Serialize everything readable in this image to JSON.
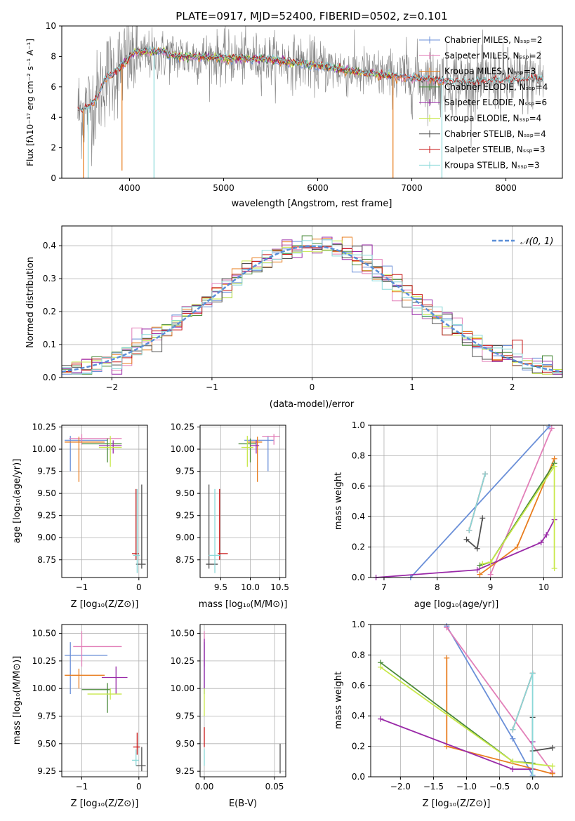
{
  "colors": {
    "chabrier_miles": "#6a8fd8",
    "salpeter_miles": "#e27fb8",
    "kroupa_miles": "#e87d1e",
    "chabrier_elodie": "#4a8a3a",
    "salpeter_elodie": "#9a2aa8",
    "kroupa_elodie": "#c8e84a",
    "chabrier_stelib": "#505050",
    "salpeter_stelib": "#c81818",
    "kroupa_stelib": "#8ad8d8",
    "data": "#7f7f7f",
    "normal": "#5b8fd8"
  },
  "chart_data": [
    {
      "id": "spectrum",
      "type": "line",
      "title": "PLATE=0917, MJD=52400, FIBERID=0502, z=0.101",
      "xlabel": "wavelength [Angstrom, rest frame]",
      "ylabel": "Flux [fλ10⁻¹⁷ erg cm⁻² s⁻¹ A⁻¹]",
      "xlim": [
        3280,
        8600
      ],
      "ylim": [
        0,
        10
      ],
      "xticks": [
        "4000",
        "5000",
        "6000",
        "7000",
        "8000"
      ],
      "yticks": [
        "0",
        "2",
        "4",
        "6",
        "8",
        "10"
      ],
      "legend_position": "top-right",
      "legend": [
        {
          "label": "Chabrier MILES, N_SSP=2",
          "color_key": "chabrier_miles"
        },
        {
          "label": "Salpeter MILES, N_SSP=2",
          "color_key": "salpeter_miles"
        },
        {
          "label": "Kroupa MILES, N_SSP=3",
          "color_key": "kroupa_miles"
        },
        {
          "label": "Chabrier ELODIE, N_SSP=4",
          "color_key": "chabrier_elodie"
        },
        {
          "label": "Salpeter ELODIE, N_SSP=6",
          "color_key": "salpeter_elodie"
        },
        {
          "label": "Kroupa ELODIE, N_SSP=4",
          "color_key": "kroupa_elodie"
        },
        {
          "label": "Chabrier STELIB, N_SSP=4",
          "color_key": "chabrier_stelib"
        },
        {
          "label": "Salpeter STELIB, N_SSP=3",
          "color_key": "salpeter_stelib"
        },
        {
          "label": "Kroupa STELIB, N_SSP=3",
          "color_key": "kroupa_stelib"
        }
      ],
      "continuum_points": [
        [
          3450,
          4.4
        ],
        [
          3550,
          4.6
        ],
        [
          3650,
          5.2
        ],
        [
          3700,
          6.0
        ],
        [
          3750,
          6.6
        ],
        [
          3850,
          7.0
        ],
        [
          3950,
          7.6
        ],
        [
          4050,
          8.0
        ],
        [
          4300,
          8.1
        ],
        [
          4600,
          8.0
        ],
        [
          5000,
          7.9
        ],
        [
          5500,
          7.8
        ],
        [
          6000,
          7.4
        ],
        [
          6500,
          6.9
        ],
        [
          7000,
          6.6
        ],
        [
          7500,
          6.3
        ],
        [
          8000,
          6.4
        ],
        [
          8400,
          6.5
        ]
      ],
      "data_noise_amplitude": 1.2,
      "dropouts": [
        [
          3510,
          0
        ],
        [
          3560,
          0
        ],
        [
          3920,
          0.5
        ],
        [
          4260,
          0
        ],
        [
          6800,
          0
        ],
        [
          7320,
          0
        ]
      ]
    },
    {
      "id": "residuals",
      "type": "histogram",
      "xlabel": "(data-model)/error",
      "ylabel": "Normed distribution",
      "xlim": [
        -2.5,
        2.5
      ],
      "ylim": [
        0,
        0.46
      ],
      "xticks": [
        "−2",
        "−1",
        "0",
        "1",
        "2"
      ],
      "yticks": [
        "0.0",
        "0.1",
        "0.2",
        "0.3",
        "0.4"
      ],
      "grid": true,
      "legend_position": "top-right",
      "normal_label": "𝒩(0, 1)",
      "bin_width": 0.1
    },
    {
      "id": "z-age",
      "type": "errorbar",
      "xlabel": "Z [log₁₀(Z/Z⊙)]",
      "ylabel": "age  [log₁₀(age/yr)]",
      "xlim": [
        -1.35,
        0.15
      ],
      "ylim": [
        8.55,
        10.27
      ],
      "xticks": [
        {
          "v": -1,
          "t": "−1"
        },
        {
          "v": 0,
          "t": "0"
        }
      ],
      "yticks": [
        {
          "v": 8.75,
          "t": "8.75"
        },
        {
          "v": 9.0,
          "t": "9.00"
        },
        {
          "v": 9.25,
          "t": "9.25"
        },
        {
          "v": 9.5,
          "t": "9.50"
        },
        {
          "v": 9.75,
          "t": "9.75"
        },
        {
          "v": 10.0,
          "t": "10.00"
        },
        {
          "v": 10.25,
          "t": "10.25"
        }
      ],
      "points": [
        {
          "c": "chabrier_miles",
          "x": -1.2,
          "y": 10.1,
          "xlo": -1.3,
          "xhi": -0.55,
          "ylo": 9.75,
          "yhi": 10.15
        },
        {
          "c": "salpeter_miles",
          "x": -1.0,
          "y": 10.12,
          "xlo": -1.22,
          "xhi": -0.3,
          "ylo": 10.05,
          "yhi": 10.17
        },
        {
          "c": "kroupa_miles",
          "x": -1.05,
          "y": 10.08,
          "xlo": -1.3,
          "xhi": -0.6,
          "ylo": 9.63,
          "yhi": 10.14
        },
        {
          "c": "chabrier_elodie",
          "x": -0.55,
          "y": 10.06,
          "xlo": -1.0,
          "xhi": -0.3,
          "ylo": 9.85,
          "yhi": 10.12
        },
        {
          "c": "salpeter_elodie",
          "x": -0.45,
          "y": 10.04,
          "xlo": -0.7,
          "xhi": -0.3,
          "ylo": 9.95,
          "yhi": 10.1
        },
        {
          "c": "kroupa_elodie",
          "x": -0.5,
          "y": 10.02,
          "xlo": -0.7,
          "xhi": -0.3,
          "ylo": 9.8,
          "yhi": 10.15
        },
        {
          "c": "chabrier_stelib",
          "x": 0.05,
          "y": 8.7,
          "xlo": -0.05,
          "xhi": 0.12,
          "ylo": 8.65,
          "yhi": 9.6
        },
        {
          "c": "salpeter_stelib",
          "x": -0.05,
          "y": 8.82,
          "xlo": -0.12,
          "xhi": 0.0,
          "ylo": 8.75,
          "yhi": 9.55
        },
        {
          "c": "kroupa_stelib",
          "x": -0.03,
          "y": 8.8,
          "xlo": -0.1,
          "xhi": 0.02,
          "ylo": 8.6,
          "yhi": 9.55
        }
      ]
    },
    {
      "id": "mass-age",
      "type": "errorbar",
      "xlabel": "mass [log₁₀(M/M⊙)]",
      "ylabel": "",
      "xlim": [
        9.15,
        10.6
      ],
      "ylim": [
        8.55,
        10.27
      ],
      "xticks": [
        {
          "v": 9.5,
          "t": "9.5"
        },
        {
          "v": 10.0,
          "t": "10.0"
        },
        {
          "v": 10.5,
          "t": "10.5"
        }
      ],
      "yticks": [
        {
          "v": 8.75,
          "t": "8.75"
        },
        {
          "v": 9.0,
          "t": "9.00"
        },
        {
          "v": 9.25,
          "t": "9.25"
        },
        {
          "v": 9.5,
          "t": "9.50"
        },
        {
          "v": 9.75,
          "t": "9.75"
        },
        {
          "v": 10.0,
          "t": "10.00"
        },
        {
          "v": 10.25,
          "t": "10.25"
        }
      ],
      "points": [
        {
          "c": "chabrier_miles",
          "x": 10.3,
          "y": 10.1,
          "xlo": 9.9,
          "xhi": 10.4,
          "ylo": 9.75,
          "yhi": 10.15
        },
        {
          "c": "salpeter_miles",
          "x": 10.4,
          "y": 10.14,
          "xlo": 10.2,
          "xhi": 10.5,
          "ylo": 10.05,
          "yhi": 10.17
        },
        {
          "c": "kroupa_miles",
          "x": 10.12,
          "y": 10.08,
          "xlo": 9.95,
          "xhi": 10.2,
          "ylo": 9.63,
          "yhi": 10.14
        },
        {
          "c": "chabrier_elodie",
          "x": 10.0,
          "y": 10.06,
          "xlo": 9.8,
          "xhi": 10.1,
          "ylo": 9.85,
          "yhi": 10.12
        },
        {
          "c": "salpeter_elodie",
          "x": 10.1,
          "y": 10.04,
          "xlo": 10.0,
          "xhi": 10.15,
          "ylo": 9.95,
          "yhi": 10.1
        },
        {
          "c": "kroupa_elodie",
          "x": 9.95,
          "y": 10.02,
          "xlo": 9.85,
          "xhi": 10.05,
          "ylo": 9.8,
          "yhi": 10.15
        },
        {
          "c": "chabrier_stelib",
          "x": 9.3,
          "y": 8.7,
          "xlo": 9.25,
          "xhi": 9.45,
          "ylo": 8.65,
          "yhi": 9.6
        },
        {
          "c": "salpeter_stelib",
          "x": 9.48,
          "y": 8.82,
          "xlo": 9.45,
          "xhi": 9.62,
          "ylo": 8.75,
          "yhi": 9.55
        },
        {
          "c": "kroupa_stelib",
          "x": 9.4,
          "y": 8.8,
          "xlo": 9.3,
          "xhi": 9.5,
          "ylo": 8.6,
          "yhi": 9.55
        }
      ]
    },
    {
      "id": "age-weight",
      "type": "line",
      "xlabel": "age  [log₁₀(age/yr)]",
      "ylabel": "mass weight",
      "xlim": [
        6.75,
        10.35
      ],
      "ylim": [
        0,
        1
      ],
      "xticks": [
        {
          "v": 7,
          "t": "7"
        },
        {
          "v": 8,
          "t": "8"
        },
        {
          "v": 9,
          "t": "9"
        },
        {
          "v": 10,
          "t": "10"
        }
      ],
      "yticks": [
        {
          "v": 0,
          "t": "0.0"
        },
        {
          "v": 0.2,
          "t": "0.2"
        },
        {
          "v": 0.4,
          "t": "0.4"
        },
        {
          "v": 0.6,
          "t": "0.6"
        },
        {
          "v": 0.8,
          "t": "0.8"
        },
        {
          "v": 1.0,
          "t": "1.0"
        }
      ],
      "series": [
        {
          "c": "chabrier_miles",
          "x": [
            7.5,
            10.1
          ],
          "y": [
            0.0,
            0.99
          ]
        },
        {
          "c": "salpeter_miles",
          "x": [
            9.0,
            10.15
          ],
          "y": [
            0.02,
            0.98
          ]
        },
        {
          "c": "kroupa_miles",
          "x": [
            8.8,
            9.5,
            10.2
          ],
          "y": [
            0.02,
            0.2,
            0.78
          ]
        },
        {
          "c": "chabrier_elodie",
          "x": [
            8.8,
            9.0,
            10.2
          ],
          "y": [
            0.08,
            0.1,
            0.75
          ]
        },
        {
          "c": "salpeter_elodie",
          "x": [
            6.85,
            8.75,
            9.95,
            10.05,
            10.2
          ],
          "y": [
            0.0,
            0.05,
            0.23,
            0.28,
            0.38
          ]
        },
        {
          "c": "kroupa_elodie",
          "x": [
            8.85,
            9.0,
            10.2,
            10.2
          ],
          "y": [
            0.09,
            0.1,
            0.73,
            0.06
          ]
        },
        {
          "c": "chabrier_stelib",
          "x": [
            8.55,
            8.75,
            8.85
          ],
          "y": [
            0.25,
            0.19,
            0.39
          ]
        },
        {
          "c": "salpeter_stelib",
          "x": [
            8.6,
            8.9
          ],
          "y": [
            0.31,
            0.68
          ]
        },
        {
          "c": "kroupa_stelib",
          "x": [
            8.6,
            8.9
          ],
          "y": [
            0.31,
            0.68
          ]
        }
      ]
    },
    {
      "id": "z-mass",
      "type": "errorbar",
      "xlabel": "Z [log₁₀(Z/Z⊙)]",
      "ylabel": "mass [log₁₀(M/M⊙)]",
      "xlim": [
        -1.35,
        0.15
      ],
      "ylim": [
        9.2,
        10.58
      ],
      "xticks": [
        {
          "v": -1,
          "t": "−1"
        },
        {
          "v": 0,
          "t": "0"
        }
      ],
      "yticks": [
        {
          "v": 9.25,
          "t": "9.25"
        },
        {
          "v": 9.5,
          "t": "9.50"
        },
        {
          "v": 9.75,
          "t": "9.75"
        },
        {
          "v": 10.0,
          "t": "10.00"
        },
        {
          "v": 10.25,
          "t": "10.25"
        },
        {
          "v": 10.5,
          "t": "10.50"
        }
      ],
      "points": [
        {
          "c": "chabrier_miles",
          "x": -1.2,
          "y": 10.3,
          "xlo": -1.3,
          "xhi": -0.55,
          "ylo": 9.95,
          "yhi": 10.42
        },
        {
          "c": "salpeter_miles",
          "x": -1.0,
          "y": 10.38,
          "xlo": -1.15,
          "xhi": -0.3,
          "ylo": 10.2,
          "yhi": 10.52
        },
        {
          "c": "kroupa_miles",
          "x": -1.05,
          "y": 10.12,
          "xlo": -1.3,
          "xhi": -0.6,
          "ylo": 10.0,
          "yhi": 10.18
        },
        {
          "c": "chabrier_elodie",
          "x": -0.55,
          "y": 9.99,
          "xlo": -1.0,
          "xhi": -0.5,
          "ylo": 9.78,
          "yhi": 10.05
        },
        {
          "c": "salpeter_elodie",
          "x": -0.4,
          "y": 10.1,
          "xlo": -0.65,
          "xhi": -0.2,
          "ylo": 9.95,
          "yhi": 10.2
        },
        {
          "c": "kroupa_elodie",
          "x": -0.5,
          "y": 9.95,
          "xlo": -0.9,
          "xhi": -0.3,
          "ylo": 9.9,
          "yhi": 10.0
        },
        {
          "c": "chabrier_stelib",
          "x": 0.05,
          "y": 9.3,
          "xlo": -0.05,
          "xhi": 0.12,
          "ylo": 9.25,
          "yhi": 9.47
        },
        {
          "c": "salpeter_stelib",
          "x": -0.03,
          "y": 9.47,
          "xlo": -0.1,
          "xhi": 0.02,
          "ylo": 9.4,
          "yhi": 9.6
        },
        {
          "c": "kroupa_stelib",
          "x": -0.05,
          "y": 9.35,
          "xlo": -0.12,
          "xhi": 0.0,
          "ylo": 9.3,
          "yhi": 9.45
        }
      ]
    },
    {
      "id": "ebv-mass",
      "type": "errorbar",
      "xlabel": "E(B-V)",
      "ylabel": "",
      "xlim": [
        -0.003,
        0.058
      ],
      "ylim": [
        9.2,
        10.58
      ],
      "xticks": [
        {
          "v": 0,
          "t": "0.00"
        },
        {
          "v": 0.05,
          "t": "0.05"
        }
      ],
      "yticks": [
        {
          "v": 9.25,
          "t": "9.25"
        },
        {
          "v": 9.5,
          "t": "9.50"
        },
        {
          "v": 9.75,
          "t": "9.75"
        },
        {
          "v": 10.0,
          "t": "10.00"
        },
        {
          "v": 10.25,
          "t": "10.25"
        },
        {
          "v": 10.5,
          "t": "10.50"
        }
      ],
      "points": [
        {
          "c": "salpeter_miles",
          "x": 0.0,
          "y": 10.38,
          "xlo": 0.0,
          "xhi": 0.0,
          "ylo": 10.2,
          "yhi": 10.52
        },
        {
          "c": "chabrier_miles",
          "x": 0.0,
          "y": 10.3,
          "xlo": 0.0,
          "xhi": 0.0,
          "ylo": 9.95,
          "yhi": 10.42
        },
        {
          "c": "salpeter_elodie",
          "x": 0.0,
          "y": 10.1,
          "xlo": 0.0,
          "xhi": 0.0,
          "ylo": 10.0,
          "yhi": 10.45
        },
        {
          "c": "kroupa_elodie",
          "x": 0.0,
          "y": 9.95,
          "xlo": 0.0,
          "xhi": 0.0,
          "ylo": 9.75,
          "yhi": 10.0
        },
        {
          "c": "salpeter_stelib",
          "x": 0.0,
          "y": 9.55,
          "xlo": 0.0,
          "xhi": 0.0,
          "ylo": 9.47,
          "yhi": 9.65
        },
        {
          "c": "kroupa_stelib",
          "x": 0.0,
          "y": 9.35,
          "xlo": 0.0,
          "xhi": 0.0,
          "ylo": 9.3,
          "yhi": 9.45
        },
        {
          "c": "chabrier_stelib",
          "x": 0.054,
          "y": 9.35,
          "xlo": 0.054,
          "xhi": 0.054,
          "ylo": 9.23,
          "yhi": 9.5
        }
      ]
    },
    {
      "id": "z-weight",
      "type": "line",
      "xlabel": "Z [log₁₀(Z/Z⊙)]",
      "ylabel": "mass weight",
      "xlim": [
        -2.45,
        0.45
      ],
      "ylim": [
        0,
        1
      ],
      "xticks": [
        {
          "v": -2,
          "t": "−2.0"
        },
        {
          "v": -1.5,
          "t": "−1.5"
        },
        {
          "v": -1,
          "t": "−1.0"
        },
        {
          "v": -0.5,
          "t": "−0.5"
        },
        {
          "v": 0,
          "t": "0.0"
        }
      ],
      "yticks": [
        {
          "v": 0,
          "t": "0.0"
        },
        {
          "v": 0.2,
          "t": "0.2"
        },
        {
          "v": 0.4,
          "t": "0.4"
        },
        {
          "v": 0.6,
          "t": "0.6"
        },
        {
          "v": 0.8,
          "t": "0.8"
        },
        {
          "v": 1.0,
          "t": "1.0"
        }
      ],
      "series": [
        {
          "c": "chabrier_miles",
          "x": [
            -1.3,
            -0.3,
            0.0
          ],
          "y": [
            0.99,
            0.25,
            0.01
          ]
        },
        {
          "c": "salpeter_miles",
          "x": [
            -1.3,
            0.3
          ],
          "y": [
            0.98,
            0.03
          ]
        },
        {
          "c": "kroupa_miles",
          "x": [
            -1.3,
            -1.3,
            0.3
          ],
          "y": [
            0.78,
            0.2,
            0.02
          ]
        },
        {
          "c": "chabrier_elodie",
          "x": [
            -2.3,
            -0.3,
            0.0
          ],
          "y": [
            0.75,
            0.1,
            0.09
          ]
        },
        {
          "c": "salpeter_elodie",
          "x": [
            -2.3,
            -0.3,
            0.0,
            0.0
          ],
          "y": [
            0.38,
            0.05,
            0.05,
            0.23
          ]
        },
        {
          "c": "kroupa_elodie",
          "x": [
            -2.3,
            -0.3,
            0.3
          ],
          "y": [
            0.72,
            0.1,
            0.07
          ]
        },
        {
          "c": "chabrier_stelib",
          "x": [
            0.0,
            0.0,
            0.3
          ],
          "y": [
            0.39,
            0.17,
            0.19
          ]
        },
        {
          "c": "salpeter_stelib",
          "x": [
            -0.3,
            0.0
          ],
          "y": [
            0.31,
            0.68
          ]
        },
        {
          "c": "kroupa_stelib",
          "x": [
            -0.3,
            0.0,
            0.0
          ],
          "y": [
            0.31,
            0.68,
            0.0
          ]
        }
      ]
    }
  ]
}
